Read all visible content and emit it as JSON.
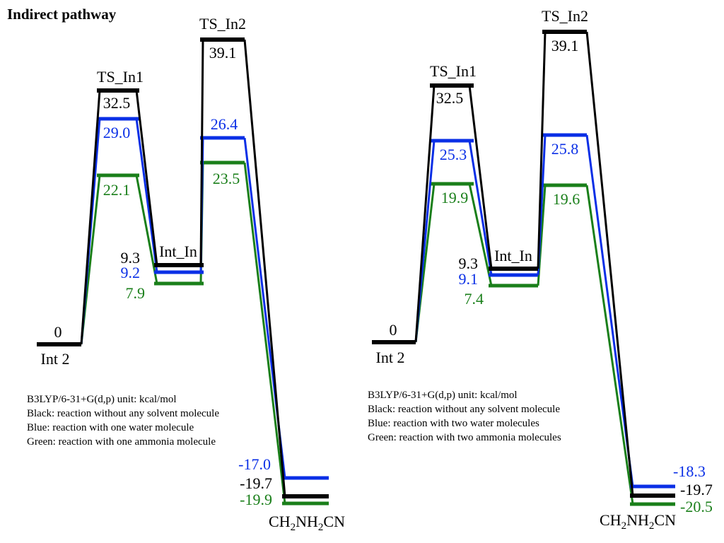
{
  "title": "Indirect pathway",
  "colors": {
    "black": "#000000",
    "blue": "#0a2fe6",
    "green": "#1a7f1a"
  },
  "panels": [
    {
      "state_labels": {
        "start": "Int 2",
        "ts1": "TS_In1",
        "int": "Int_In",
        "ts2": "TS_In2",
        "product_main": "CH",
        "product_sub1": "2",
        "product_mid": "NH",
        "product_sub2": "2",
        "product_end": "CN"
      },
      "series": [
        {
          "color": "black",
          "energies": [
            "0",
            "32.5",
            "9.3",
            "39.1",
            "-19.7"
          ]
        },
        {
          "color": "blue",
          "energies": [
            null,
            "29.0",
            "9.2",
            "26.4",
            "-17.0"
          ]
        },
        {
          "color": "green",
          "energies": [
            null,
            "22.1",
            "7.9",
            "23.5",
            "-19.9"
          ]
        }
      ],
      "notes": [
        "B3LYP/6-31+G(d,p)  unit: kcal/mol",
        "Black: reaction without any solvent molecule",
        "Blue: reaction with one water molecule",
        "Green: reaction with one ammonia molecule"
      ]
    },
    {
      "state_labels": {
        "start": "Int 2",
        "ts1": "TS_In1",
        "int": "Int_In",
        "ts2": "TS_In2",
        "product_main": "CH",
        "product_sub1": "2",
        "product_mid": "NH",
        "product_sub2": "2",
        "product_end": "CN"
      },
      "series": [
        {
          "color": "black",
          "energies": [
            "0",
            "32.5",
            "9.3",
            "39.1",
            "-19.7"
          ]
        },
        {
          "color": "blue",
          "energies": [
            null,
            "25.3",
            "9.1",
            "25.8",
            "-18.3"
          ]
        },
        {
          "color": "green",
          "energies": [
            null,
            "19.9",
            "7.4",
            "19.6",
            "-20.5"
          ]
        }
      ],
      "notes": [
        "B3LYP/6-31+G(d,p)  unit: kcal/mol",
        "Black: reaction without any solvent molecule",
        "Blue: reaction with two water molecules",
        "Green: reaction with two ammonia molecules"
      ]
    }
  ]
}
